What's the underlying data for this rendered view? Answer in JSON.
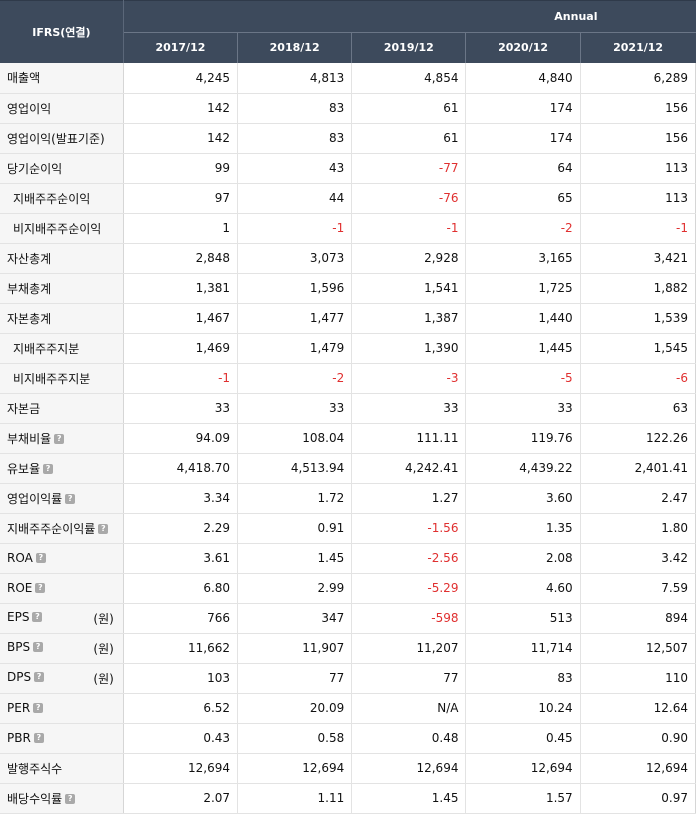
{
  "header": {
    "corner_label": "IFRS(연결)",
    "period_group": "Annual",
    "years": [
      "2017/12",
      "2018/12",
      "2019/12",
      "2020/12",
      "2021/12"
    ]
  },
  "help_glyph": "?",
  "colors": {
    "header_bg": "#3d4a5c",
    "negative": "#e03030",
    "label_bg": "#f6f6f6"
  },
  "rows": [
    {
      "label": "매출액",
      "indent": false,
      "help": false,
      "unit": "",
      "values": [
        "4,245",
        "4,813",
        "4,854",
        "4,840",
        "6,289"
      ]
    },
    {
      "label": "영업이익",
      "indent": false,
      "help": false,
      "unit": "",
      "values": [
        "142",
        "83",
        "61",
        "174",
        "156"
      ]
    },
    {
      "label": "영업이익(발표기준)",
      "indent": false,
      "help": false,
      "unit": "",
      "values": [
        "142",
        "83",
        "61",
        "174",
        "156"
      ]
    },
    {
      "label": "당기순이익",
      "indent": false,
      "help": false,
      "unit": "",
      "values": [
        "99",
        "43",
        "-77",
        "64",
        "113"
      ]
    },
    {
      "label": "지배주주순이익",
      "indent": true,
      "help": false,
      "unit": "",
      "values": [
        "97",
        "44",
        "-76",
        "65",
        "113"
      ]
    },
    {
      "label": "비지배주주순이익",
      "indent": true,
      "help": false,
      "unit": "",
      "values": [
        "1",
        "-1",
        "-1",
        "-2",
        "-1"
      ]
    },
    {
      "label": "자산총계",
      "indent": false,
      "help": false,
      "unit": "",
      "values": [
        "2,848",
        "3,073",
        "2,928",
        "3,165",
        "3,421"
      ]
    },
    {
      "label": "부채총계",
      "indent": false,
      "help": false,
      "unit": "",
      "values": [
        "1,381",
        "1,596",
        "1,541",
        "1,725",
        "1,882"
      ]
    },
    {
      "label": "자본총계",
      "indent": false,
      "help": false,
      "unit": "",
      "values": [
        "1,467",
        "1,477",
        "1,387",
        "1,440",
        "1,539"
      ]
    },
    {
      "label": "지배주주지분",
      "indent": true,
      "help": false,
      "unit": "",
      "values": [
        "1,469",
        "1,479",
        "1,390",
        "1,445",
        "1,545"
      ]
    },
    {
      "label": "비지배주주지분",
      "indent": true,
      "help": false,
      "unit": "",
      "values": [
        "-1",
        "-2",
        "-3",
        "-5",
        "-6"
      ]
    },
    {
      "label": "자본금",
      "indent": false,
      "help": false,
      "unit": "",
      "values": [
        "33",
        "33",
        "33",
        "33",
        "63"
      ]
    },
    {
      "label": "부채비율",
      "indent": false,
      "help": true,
      "unit": "",
      "values": [
        "94.09",
        "108.04",
        "111.11",
        "119.76",
        "122.26"
      ]
    },
    {
      "label": "유보율",
      "indent": false,
      "help": true,
      "unit": "",
      "values": [
        "4,418.70",
        "4,513.94",
        "4,242.41",
        "4,439.22",
        "2,401.41"
      ]
    },
    {
      "label": "영업이익률",
      "indent": false,
      "help": true,
      "unit": "",
      "values": [
        "3.34",
        "1.72",
        "1.27",
        "3.60",
        "2.47"
      ]
    },
    {
      "label": "지배주주순이익률",
      "indent": false,
      "help": true,
      "unit": "",
      "values": [
        "2.29",
        "0.91",
        "-1.56",
        "1.35",
        "1.80"
      ]
    },
    {
      "label": "ROA",
      "indent": false,
      "help": true,
      "unit": "",
      "values": [
        "3.61",
        "1.45",
        "-2.56",
        "2.08",
        "3.42"
      ]
    },
    {
      "label": "ROE",
      "indent": false,
      "help": true,
      "unit": "",
      "values": [
        "6.80",
        "2.99",
        "-5.29",
        "4.60",
        "7.59"
      ]
    },
    {
      "label": "EPS",
      "indent": false,
      "help": true,
      "unit": "(원)",
      "values": [
        "766",
        "347",
        "-598",
        "513",
        "894"
      ]
    },
    {
      "label": "BPS",
      "indent": false,
      "help": true,
      "unit": "(원)",
      "values": [
        "11,662",
        "11,907",
        "11,207",
        "11,714",
        "12,507"
      ]
    },
    {
      "label": "DPS",
      "indent": false,
      "help": true,
      "unit": "(원)",
      "values": [
        "103",
        "77",
        "77",
        "83",
        "110"
      ]
    },
    {
      "label": "PER",
      "indent": false,
      "help": true,
      "unit": "",
      "values": [
        "6.52",
        "20.09",
        "N/A",
        "10.24",
        "12.64"
      ]
    },
    {
      "label": "PBR",
      "indent": false,
      "help": true,
      "unit": "",
      "values": [
        "0.43",
        "0.58",
        "0.48",
        "0.45",
        "0.90"
      ]
    },
    {
      "label": "발행주식수",
      "indent": false,
      "help": false,
      "unit": "",
      "values": [
        "12,694",
        "12,694",
        "12,694",
        "12,694",
        "12,694"
      ]
    },
    {
      "label": "배당수익률",
      "indent": false,
      "help": true,
      "unit": "",
      "values": [
        "2.07",
        "1.11",
        "1.45",
        "1.57",
        "0.97"
      ]
    }
  ]
}
